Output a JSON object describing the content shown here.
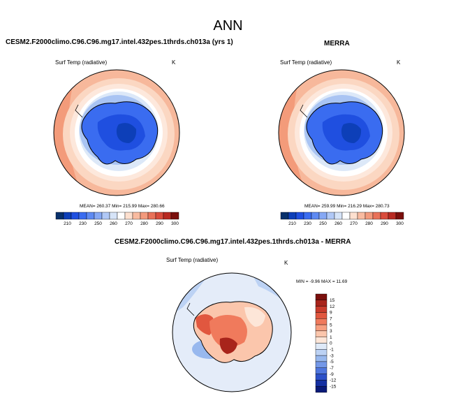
{
  "figure": {
    "title": "ANN"
  },
  "panels": [
    {
      "title": "CESM2.F2000climo.C96.C96.mg17.intel.432pes.1thrds.ch013a (yrs 1)",
      "variable": "Surf Temp (radiative)",
      "units": "K",
      "stats": "MEAN= 260.37  Min= 215.99  Max= 280.66"
    },
    {
      "title": "MERRA",
      "variable": "Surf Temp (radiative)",
      "units": "K",
      "stats": "MEAN= 259.99  Min= 216.29  Max= 280.73"
    },
    {
      "title": "CESM2.F2000climo.C96.C96.mg17.intel.432pes.1thrds.ch013a - MERRA",
      "variable": "Surf Temp (radiative)",
      "units": "K",
      "stats": "MIN = -9.96 MAX = 11.69"
    }
  ],
  "colorbar_abs": {
    "labels": [
      "210",
      "230",
      "250",
      "260",
      "270",
      "280",
      "290",
      "300"
    ],
    "colors": [
      "#08306b",
      "#0d3fb8",
      "#1f4fe0",
      "#3a6cf0",
      "#5e8af2",
      "#86a8f4",
      "#b0c8f6",
      "#d6e4f8",
      "#ffffff",
      "#fde0cf",
      "#f9bba0",
      "#f39a7c",
      "#e97259",
      "#d94c3c",
      "#b82a22",
      "#7a0f0c"
    ]
  },
  "colorbar_diff": {
    "labels": [
      "15",
      "12",
      "9",
      "7",
      "5",
      "3",
      "1",
      "0",
      "-1",
      "-3",
      "-5",
      "-7",
      "-9",
      "-12",
      "-15"
    ],
    "colors": [
      "#7a0f0c",
      "#a8241b",
      "#c93b2c",
      "#e1573f",
      "#f07a5c",
      "#f79f80",
      "#fbc6ac",
      "#fde6d8",
      "#dfeaf8",
      "#bcd2f4",
      "#98b8ee",
      "#7498e8",
      "#4f76de",
      "#2c50c8",
      "#1530a2",
      "#0a1a78"
    ]
  }
}
